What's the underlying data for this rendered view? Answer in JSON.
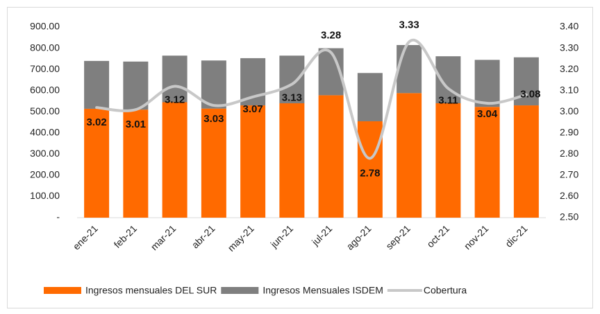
{
  "chart_data": {
    "type": "bar",
    "categories": [
      "ene-21",
      "feb-21",
      "mar-21",
      "abr-21",
      "may-21",
      "jun-21",
      "jul-21",
      "ago-21",
      "sep-21",
      "oct-21",
      "nov-21",
      "dic-21"
    ],
    "stacked": true,
    "series": [
      {
        "name": "Ingresos mensuales DEL SUR",
        "color": "#ff6a00",
        "values": [
          514,
          510,
          545,
          515,
          530,
          540,
          578,
          455,
          588,
          540,
          523,
          530
        ]
      },
      {
        "name": "Ingresos Mensuales ISDEM",
        "color": "#7f7f7f",
        "values": [
          226,
          227,
          220,
          227,
          223,
          225,
          222,
          228,
          227,
          222,
          222,
          227
        ]
      },
      {
        "name": "Cobertura",
        "color": "#c8c8c8",
        "type": "line",
        "axis": "y2",
        "smooth": true,
        "values": [
          3.02,
          3.01,
          3.12,
          3.03,
          3.07,
          3.13,
          3.28,
          2.78,
          3.33,
          3.11,
          3.04,
          3.08
        ]
      }
    ],
    "ylim": [
      0,
      900
    ],
    "yticks": [
      {
        "value": 0,
        "label": "-"
      },
      {
        "value": 100,
        "label": "100.00"
      },
      {
        "value": 200,
        "label": "200.00"
      },
      {
        "value": 300,
        "label": "300.00"
      },
      {
        "value": 400,
        "label": "400.00"
      },
      {
        "value": 500,
        "label": "500.00"
      },
      {
        "value": 600,
        "label": "600.00"
      },
      {
        "value": 700,
        "label": "700.00"
      },
      {
        "value": 800,
        "label": "800.00"
      },
      {
        "value": 900,
        "label": "900.00"
      }
    ],
    "y2lim": [
      2.5,
      3.4
    ],
    "y2ticks": [
      {
        "value": 2.5,
        "label": "2.50"
      },
      {
        "value": 2.6,
        "label": "2.60"
      },
      {
        "value": 2.7,
        "label": "2.70"
      },
      {
        "value": 2.8,
        "label": "2.80"
      },
      {
        "value": 2.9,
        "label": "2.90"
      },
      {
        "value": 3.0,
        "label": "3.00"
      },
      {
        "value": 3.1,
        "label": "3.10"
      },
      {
        "value": 3.2,
        "label": "3.20"
      },
      {
        "value": 3.3,
        "label": "3.30"
      },
      {
        "value": 3.4,
        "label": "3.40"
      }
    ],
    "grid": false,
    "legend": "bottom"
  }
}
